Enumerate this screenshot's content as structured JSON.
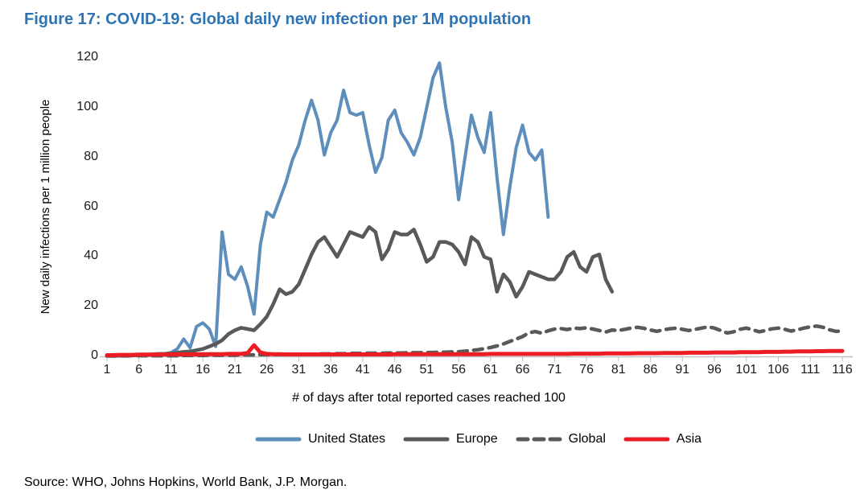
{
  "figure": {
    "title": "Figure 17: COVID-19: Global daily new infection per 1M population",
    "title_color": "#2E74B5",
    "source": "Source: WHO, Johns Hopkins, World Bank, J.P. Morgan."
  },
  "chart_data": {
    "type": "line",
    "title": "Figure 17: COVID-19: Global daily new infection per 1M population",
    "xlabel": "# of days after total reported cases reached 100",
    "ylabel": "New daily infections per 1 million people",
    "xlim": [
      1,
      116
    ],
    "ylim": [
      0,
      120
    ],
    "x_ticks": [
      1,
      6,
      11,
      16,
      21,
      26,
      31,
      36,
      41,
      46,
      51,
      56,
      61,
      66,
      71,
      76,
      81,
      86,
      91,
      96,
      101,
      106,
      111,
      116
    ],
    "y_ticks": [
      0,
      20,
      40,
      60,
      80,
      100,
      120
    ],
    "grid": false,
    "legend_position": "bottom",
    "axis_color": "#BFBFBF",
    "series": [
      {
        "name": "United States",
        "color": "#5E8FBC",
        "style": "solid",
        "x_start": 1,
        "values": [
          0.3,
          0.3,
          0.3,
          0.4,
          0.4,
          0.5,
          0.5,
          0.6,
          0.8,
          1,
          1.5,
          3,
          7,
          3.5,
          12,
          13.5,
          11,
          4,
          50,
          33,
          31,
          36,
          28,
          17,
          45,
          58,
          56,
          63,
          70,
          79,
          85,
          95,
          103,
          95,
          81,
          90,
          95,
          107,
          98,
          97,
          98,
          85,
          74,
          80,
          95,
          99,
          90,
          86,
          81,
          88,
          100,
          112,
          118,
          100,
          86,
          63,
          80,
          97,
          88,
          82,
          98,
          72,
          49,
          68,
          84,
          93,
          82,
          79,
          83,
          56
        ]
      },
      {
        "name": "Europe",
        "color": "#595959",
        "style": "solid",
        "x_start": 1,
        "values": [
          0.2,
          0.2,
          0.3,
          0.3,
          0.4,
          0.5,
          0.6,
          0.8,
          1,
          1,
          1.2,
          1.5,
          1.8,
          2,
          2.5,
          3,
          4,
          5,
          6.5,
          9,
          10.5,
          11.5,
          11,
          10.5,
          13,
          16,
          21,
          27,
          25,
          26,
          29,
          35,
          41,
          46,
          48,
          44,
          40,
          45,
          50,
          49,
          48,
          52,
          50,
          39,
          43,
          50,
          49,
          49,
          51,
          45,
          38,
          40,
          46,
          46,
          45,
          42,
          37,
          48,
          46,
          40,
          39,
          26,
          33,
          30,
          24,
          28,
          34,
          33,
          32,
          31,
          31,
          34,
          40,
          42,
          36,
          34,
          40,
          41,
          31,
          26
        ]
      },
      {
        "name": "Global",
        "color": "#595959",
        "style": "dashed",
        "x_start": 1,
        "values": [
          0.2,
          0.2,
          0.2,
          0.2,
          0.3,
          0.3,
          0.3,
          0.3,
          0.3,
          0.3,
          0.3,
          0.3,
          0.4,
          0.4,
          0.4,
          0.4,
          0.5,
          0.5,
          0.5,
          0.5,
          0.5,
          0.6,
          0.6,
          0.6,
          0.7,
          0.7,
          0.7,
          0.8,
          0.8,
          0.8,
          0.8,
          0.9,
          0.9,
          1,
          1,
          1,
          1.1,
          1.1,
          1.2,
          1.2,
          1.2,
          1.3,
          1.3,
          1.3,
          1.4,
          1.4,
          1.4,
          1.5,
          1.5,
          1.5,
          1.6,
          1.6,
          1.7,
          1.7,
          1.8,
          1.9,
          2.1,
          2.4,
          2.7,
          3.1,
          3.6,
          4.2,
          5,
          6,
          7,
          8,
          9.5,
          10,
          9.3,
          10.3,
          11,
          11.2,
          10.8,
          11.4,
          11.2,
          11.5,
          11,
          10.4,
          9.8,
          10.6,
          10.4,
          10.9,
          11.4,
          11.7,
          11.3,
          10.6,
          10.1,
          10.7,
          11.1,
          11.4,
          10.9,
          10.4,
          10.9,
          11.4,
          11.9,
          11.4,
          10.4,
          9.4,
          9.9,
          10.9,
          11.4,
          10.7,
          9.9,
          10.4,
          11.1,
          11.4,
          10.9,
          10.2,
          10.7,
          11.4,
          11.9,
          12.2,
          11.7,
          10.7,
          10.1,
          10.2
        ]
      },
      {
        "name": "Asia",
        "color": "#EC1C24",
        "style": "solid",
        "x_start": 1,
        "values": [
          0.5,
          0.5,
          0.6,
          0.6,
          0.6,
          0.7,
          0.7,
          0.7,
          0.7,
          0.8,
          0.8,
          0.8,
          0.8,
          0.8,
          0.8,
          0.9,
          0.9,
          0.9,
          0.9,
          1,
          1,
          1,
          1.4,
          4.5,
          1.6,
          1,
          0.9,
          0.9,
          0.8,
          0.8,
          0.8,
          0.8,
          0.8,
          0.8,
          0.8,
          0.8,
          0.8,
          0.8,
          0.8,
          0.8,
          0.8,
          0.8,
          0.8,
          0.8,
          0.8,
          0.9,
          0.9,
          0.9,
          0.9,
          0.9,
          0.9,
          0.9,
          0.9,
          0.9,
          0.9,
          0.9,
          0.9,
          0.9,
          0.9,
          0.9,
          1,
          1,
          1,
          1,
          1,
          1,
          1,
          1,
          1,
          1,
          1,
          1,
          1,
          1.1,
          1.1,
          1.1,
          1.1,
          1.1,
          1.2,
          1.2,
          1.2,
          1.2,
          1.2,
          1.3,
          1.3,
          1.3,
          1.3,
          1.4,
          1.4,
          1.4,
          1.4,
          1.5,
          1.5,
          1.5,
          1.5,
          1.6,
          1.6,
          1.6,
          1.6,
          1.7,
          1.7,
          1.7,
          1.7,
          1.8,
          1.8,
          1.8,
          1.9,
          1.9,
          2,
          2,
          2,
          2.1,
          2.1,
          2.2,
          2.2,
          2.2
        ]
      }
    ]
  }
}
